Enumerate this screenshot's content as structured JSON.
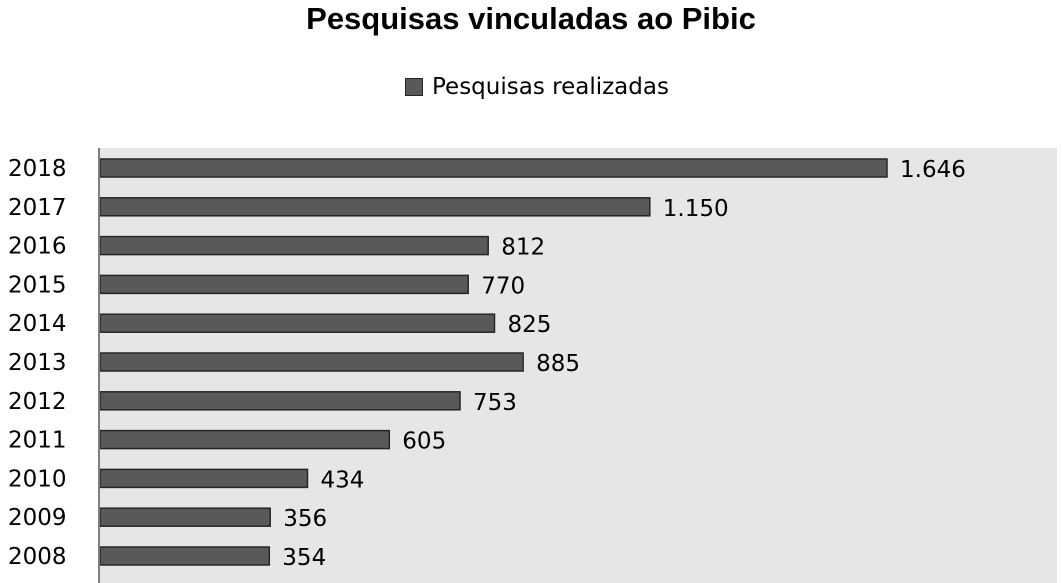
{
  "chart_data": {
    "type": "bar",
    "orientation": "horizontal",
    "title": "Pesquisas vinculadas ao Pibic",
    "categories": [
      "2018",
      "2017",
      "2016",
      "2015",
      "2014",
      "2013",
      "2012",
      "2011",
      "2010",
      "2009",
      "2008"
    ],
    "series": [
      {
        "name": "Pesquisas realizadas",
        "values": [
          1646,
          1150,
          812,
          770,
          825,
          885,
          753,
          605,
          434,
          356,
          354
        ],
        "labels": [
          "1.646",
          "1.150",
          "812",
          "770",
          "825",
          "885",
          "753",
          "605",
          "434",
          "356",
          "354"
        ]
      }
    ],
    "xlim": [
      0,
      1800
    ],
    "legend_position": "top",
    "grid": false,
    "colors": {
      "bar": "#595959",
      "bar_edge": "#262626",
      "plot_background": "#e6e6e6",
      "axis": "#7f7f7f"
    }
  }
}
